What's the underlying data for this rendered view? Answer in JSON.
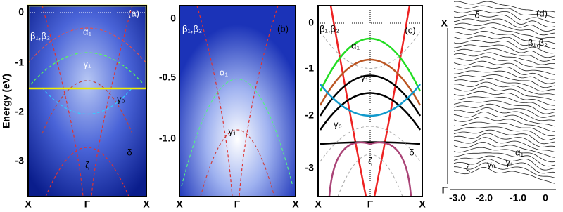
{
  "y_axis_label": "Energy (eV)",
  "panels": [
    {
      "label": "(a)",
      "yticks": [
        "0",
        "-1",
        "-2",
        "-3"
      ],
      "xticks": [
        "X",
        "Γ",
        "X"
      ],
      "annotations": [
        "β₁,β₂",
        "α₁",
        "γ₁",
        "γ₀",
        "δ",
        "ζ"
      ]
    },
    {
      "label": "(b)",
      "yticks": [
        "0",
        "-0.5",
        "-1.0"
      ],
      "xticks": [
        "X",
        "Γ",
        "X"
      ],
      "annotations": [
        "β₁,β₂",
        "α₁",
        "γ₁"
      ]
    },
    {
      "label": "(c)",
      "yticks": [
        "0",
        "-1",
        "-2",
        "-3"
      ],
      "xticks": [
        "X",
        "Γ",
        "X"
      ],
      "annotations": [
        "β₁,β₂",
        "α₁",
        "γ₁",
        "γ₀",
        "ζ",
        "δ"
      ]
    },
    {
      "label": "(d)",
      "yticks": [
        "X",
        "Γ"
      ],
      "xticks": [
        "-3.0",
        "-2.0",
        "-1.0",
        "0"
      ],
      "annotations": [
        "δ",
        "β₁,β₂",
        "ζ",
        "γ₀",
        "γ₁",
        "α₁"
      ]
    }
  ]
}
